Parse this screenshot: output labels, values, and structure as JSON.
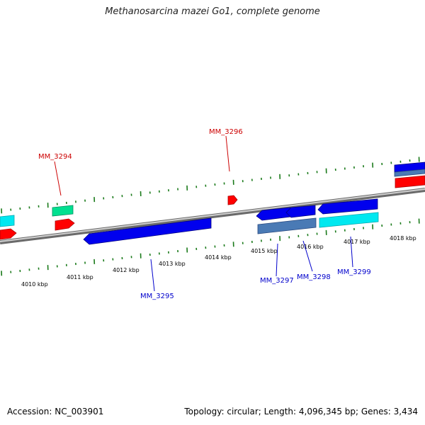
{
  "title": "Methanosarcina mazei Go1, complete genome",
  "footer": {
    "accession": "Accession: NC_003901",
    "topology": "Topology: circular; Length: 4,096,345 bp; Genes: 3,434"
  },
  "colors": {
    "forward_label": "#cc0000",
    "reverse_label": "#0000cc",
    "tick": "#1a7a1a",
    "backbone": "#808080",
    "gene_red": "#ff0000",
    "gene_blue": "#0000ee",
    "gene_cyan": "#00e8f0",
    "gene_teal": "#00e090",
    "gene_steel": "#4a7ab5"
  },
  "scale": {
    "unit": "kbp",
    "labels": [
      "4010 kbp",
      "4011 kbp",
      "4012 kbp",
      "4013 kbp",
      "4014 kbp",
      "4015 kbp",
      "4016 kbp",
      "4017 kbp",
      "4018 kbp"
    ]
  },
  "genes": {
    "forward": [
      {
        "label": "MM_3294",
        "strand": "+"
      },
      {
        "label": "MM_3296",
        "strand": "+"
      }
    ],
    "reverse": [
      {
        "label": "MM_3295",
        "strand": "-"
      },
      {
        "label": "MM_3297",
        "strand": "-"
      },
      {
        "label": "MM_3298",
        "strand": "-"
      },
      {
        "label": "MM_3299",
        "strand": "-"
      }
    ]
  }
}
